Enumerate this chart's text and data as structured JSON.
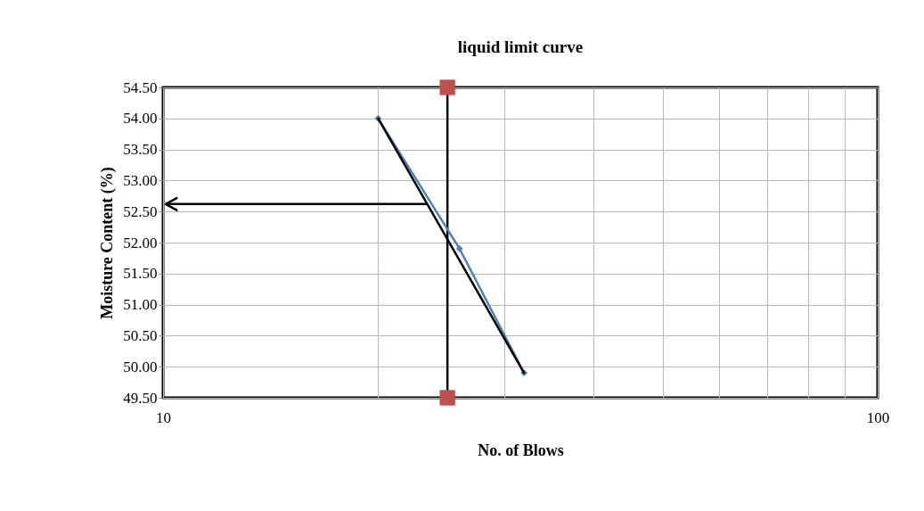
{
  "chart_data": {
    "type": "line",
    "title": "liquid limit curve",
    "xlabel": "No.  of  Blows",
    "ylabel": "Moisture  Content  (%)",
    "log": "x",
    "grid": true,
    "xlim": [
      10,
      100
    ],
    "xticks": [
      10,
      {
        "value": 20,
        "label": null
      },
      {
        "value": 30,
        "label": null
      },
      {
        "value": 40,
        "label": null
      },
      {
        "value": 50,
        "label": null
      },
      {
        "value": 60,
        "label": null
      },
      {
        "value": 70,
        "label": null
      },
      {
        "value": 80,
        "label": null
      },
      {
        "value": 90,
        "label": null
      },
      100
    ],
    "ylim": [
      49.5,
      54.5
    ],
    "yticks": [
      {
        "value": 49.5,
        "label": "49.50"
      },
      {
        "value": 50,
        "label": "50.00"
      },
      {
        "value": 50.5,
        "label": "50.50"
      },
      {
        "value": 51,
        "label": "51.00"
      },
      {
        "value": 51.5,
        "label": "51.50"
      },
      {
        "value": 52,
        "label": "52.00"
      },
      {
        "value": 52.5,
        "label": "52.50"
      },
      {
        "value": 53,
        "label": "53.00"
      },
      {
        "value": 53.5,
        "label": "53.50"
      },
      {
        "value": 54,
        "label": "54.00"
      },
      {
        "value": 54.5,
        "label": "54.50"
      }
    ],
    "ref_lines": [
      {
        "axis": "x",
        "value": 25,
        "color": "#000000"
      },
      {
        "axis": "y",
        "value": 52.62,
        "color": "#000000"
      }
    ],
    "series": [
      {
        "color": "#4f81bd",
        "marker": "diamond",
        "x": [
          20,
          26,
          32
        ],
        "values": [
          54.0,
          51.9,
          49.9
        ]
      },
      {
        "color": "#000000",
        "marker": "none",
        "x": [
          20,
          32
        ],
        "values": [
          54.0,
          49.9
        ]
      },
      {
        "type": "scatter",
        "color": "#c0504d",
        "marker": "square",
        "x": [
          25,
          25
        ],
        "values": [
          54.5,
          49.5
        ]
      }
    ]
  }
}
